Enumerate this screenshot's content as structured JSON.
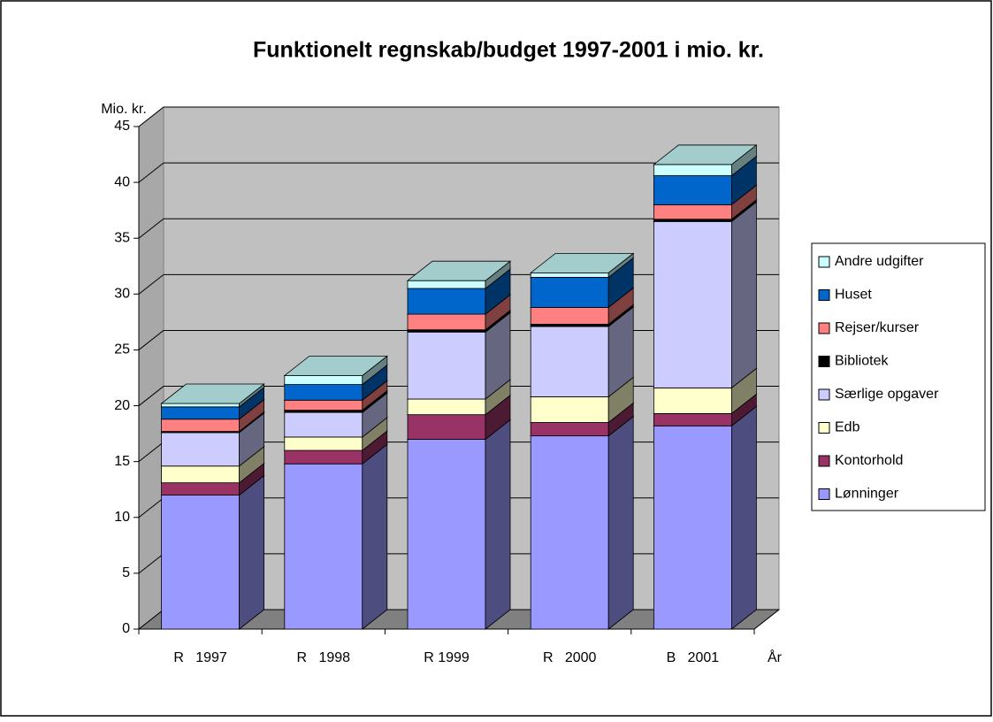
{
  "chart_data": {
    "type": "bar",
    "stacked": true,
    "title": "Funktionelt regnskab/budget 1997-2001 i mio. kr.",
    "y_label": "Mio. kr.",
    "x_label": "År",
    "categories": [
      "R   1997",
      "R   1998",
      "R 1999",
      "R   2000",
      "B   2001"
    ],
    "series": [
      {
        "name": "Lønninger",
        "color": "#9999ff",
        "values": [
          12.0,
          14.8,
          17.0,
          17.3,
          18.2
        ]
      },
      {
        "name": "Kontorhold",
        "color": "#993366",
        "values": [
          1.1,
          1.2,
          2.2,
          1.2,
          1.1
        ]
      },
      {
        "name": "Edb",
        "color": "#ffffcc",
        "values": [
          1.5,
          1.2,
          1.4,
          2.3,
          2.3
        ]
      },
      {
        "name": "Særlige opgaver",
        "color": "#ccccff",
        "values": [
          3.0,
          2.2,
          6.0,
          6.3,
          14.9
        ]
      },
      {
        "name": "Bibliotek",
        "color": "#000000",
        "values": [
          0.1,
          0.2,
          0.2,
          0.2,
          0.2
        ]
      },
      {
        "name": "Rejser/kurser",
        "color": "#ff8080",
        "values": [
          1.1,
          0.9,
          1.4,
          1.5,
          1.3
        ]
      },
      {
        "name": "Huset",
        "color": "#0066cc",
        "values": [
          1.1,
          1.4,
          2.3,
          2.7,
          2.6
        ]
      },
      {
        "name": "Andre udgifter",
        "color": "#ccffff",
        "values": [
          0.3,
          0.8,
          0.7,
          0.4,
          1.0
        ]
      }
    ],
    "ylim": [
      0,
      45
    ],
    "yticks": [
      0,
      5,
      10,
      15,
      20,
      25,
      30,
      35,
      40,
      45
    ],
    "grid": true,
    "legend": "right"
  }
}
